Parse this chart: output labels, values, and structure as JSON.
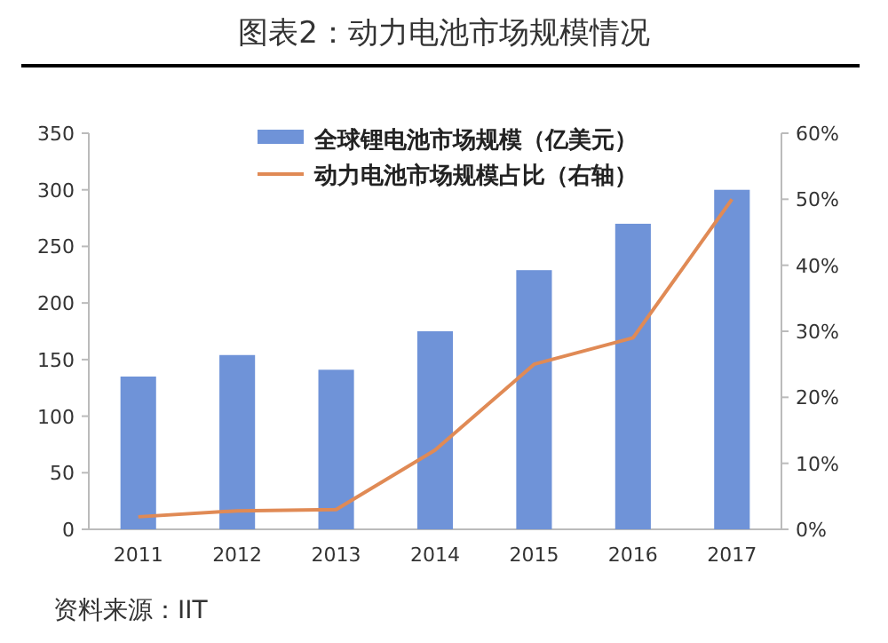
{
  "chart_data": {
    "type": "bar",
    "title": "图表2：动力电池市场规模情况",
    "categories": [
      "2011",
      "2012",
      "2013",
      "2014",
      "2015",
      "2016",
      "2017"
    ],
    "series": [
      {
        "name": "全球锂电池市场规模（亿美元）",
        "color": "#6f93d8",
        "values": [
          135,
          154,
          141,
          175,
          229,
          270,
          300
        ]
      },
      {
        "name": "动力电池市场规模占比（右轴）",
        "type": "line",
        "axis": "y2",
        "color": "#e08a55",
        "values": [
          1.9,
          2.8,
          3,
          12,
          25,
          29,
          50
        ]
      }
    ],
    "ylim": [
      0,
      350
    ],
    "yticks": [
      0,
      50,
      100,
      150,
      200,
      250,
      300,
      350
    ],
    "y2lim": [
      0,
      60
    ],
    "y2ticks": [
      {
        "value": 0,
        "label": "0%"
      },
      {
        "value": 10,
        "label": "10%"
      },
      {
        "value": 20,
        "label": "20%"
      },
      {
        "value": 30,
        "label": "30%"
      },
      {
        "value": 40,
        "label": "40%"
      },
      {
        "value": 50,
        "label": "50%"
      },
      {
        "value": 60,
        "label": "60%"
      }
    ],
    "legend": "top",
    "annotations": [
      "资料来源：IIT"
    ]
  }
}
